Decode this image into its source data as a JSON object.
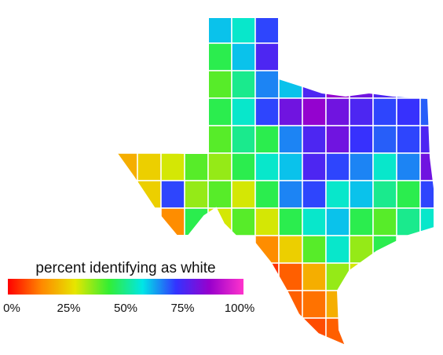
{
  "map": {
    "legend_title": "percent identifying as white",
    "clim": [
      0,
      100
    ],
    "colors": [
      "#ff0000",
      "#ff8800",
      "#e6e600",
      "#33ee33",
      "#00e6e6",
      "#3333ff",
      "#9900cc",
      "#ff33cc"
    ],
    "ticks": [
      {
        "value": 0,
        "label": "0%"
      },
      {
        "value": 25,
        "label": "25%"
      },
      {
        "value": 50,
        "label": "50%"
      },
      {
        "value": 75,
        "label": "75%"
      },
      {
        "value": 100,
        "label": "100%"
      }
    ],
    "grid": [
      [
        null,
        null,
        null,
        null,
        60,
        55,
        70,
        null,
        null,
        null,
        null,
        null,
        null,
        null
      ],
      [
        null,
        null,
        null,
        null,
        45,
        60,
        75,
        null,
        null,
        null,
        null,
        null,
        null,
        null
      ],
      [
        null,
        null,
        null,
        null,
        40,
        50,
        65,
        60,
        75,
        85,
        80,
        75,
        70,
        70
      ],
      [
        null,
        null,
        null,
        null,
        45,
        55,
        70,
        80,
        85,
        80,
        75,
        70,
        72,
        68
      ],
      [
        null,
        null,
        null,
        null,
        40,
        50,
        45,
        65,
        75,
        80,
        72,
        68,
        70,
        75
      ],
      [
        20,
        25,
        30,
        40,
        35,
        45,
        55,
        60,
        75,
        70,
        65,
        55,
        65,
        80
      ],
      [
        null,
        25,
        70,
        35,
        40,
        30,
        45,
        65,
        70,
        55,
        60,
        50,
        45,
        70
      ],
      [
        null,
        null,
        15,
        45,
        30,
        40,
        30,
        45,
        55,
        60,
        45,
        40,
        50,
        55
      ],
      [
        null,
        null,
        null,
        null,
        null,
        null,
        15,
        25,
        40,
        55,
        35,
        45,
        null,
        null
      ],
      [
        null,
        null,
        null,
        null,
        null,
        null,
        5,
        10,
        20,
        35,
        30,
        null,
        null,
        null
      ],
      [
        null,
        null,
        null,
        null,
        null,
        null,
        null,
        10,
        12,
        20,
        25,
        null,
        null,
        null
      ],
      [
        null,
        null,
        null,
        null,
        null,
        null,
        null,
        null,
        8,
        10,
        null,
        null,
        null,
        null
      ]
    ]
  }
}
